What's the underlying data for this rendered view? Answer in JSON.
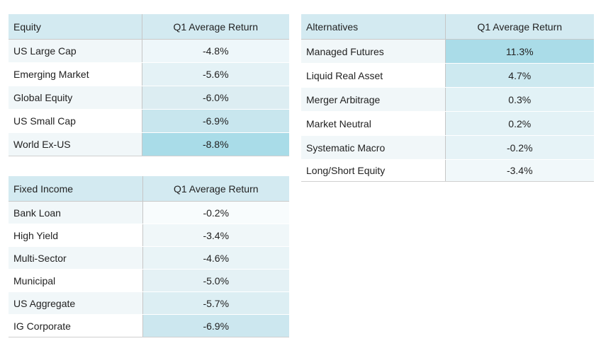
{
  "equity": {
    "header": {
      "name": "Equity",
      "value": "Q1 Average Return"
    },
    "rows": [
      {
        "name": "US Large Cap",
        "value": "-4.8%",
        "color": "#eef7fa"
      },
      {
        "name": "Emerging Market",
        "value": "-5.6%",
        "color": "#e4f2f6"
      },
      {
        "name": "Global Equity",
        "value": "-6.0%",
        "color": "#dcedf2"
      },
      {
        "name": "US Small Cap",
        "value": "-6.9%",
        "color": "#c8e6ee"
      },
      {
        "name": "World Ex-US",
        "value": "-8.8%",
        "color": "#a9dce8"
      }
    ]
  },
  "fixed_income": {
    "header": {
      "name": "Fixed Income",
      "value": "Q1 Average Return"
    },
    "rows": [
      {
        "name": "Bank Loan",
        "value": "-0.2%",
        "color": "#f8fcfd"
      },
      {
        "name": "High Yield",
        "value": "-3.4%",
        "color": "#f0f7f9"
      },
      {
        "name": "Multi-Sector",
        "value": "-4.6%",
        "color": "#e9f4f7"
      },
      {
        "name": "Municipal",
        "value": "-5.0%",
        "color": "#e4f1f5"
      },
      {
        "name": "US Aggregate",
        "value": "-5.7%",
        "color": "#dceef3"
      },
      {
        "name": "IG Corporate",
        "value": "-6.9%",
        "color": "#cce7ef"
      }
    ]
  },
  "alternatives": {
    "header": {
      "name": "Alternatives",
      "value": "Q1 Average Return"
    },
    "rows": [
      {
        "name": "Managed Futures",
        "value": "11.3%",
        "color": "#aadce8"
      },
      {
        "name": "Liquid Real Asset",
        "value": "4.7%",
        "color": "#cde9f0"
      },
      {
        "name": "Merger Arbitrage",
        "value": "0.3%",
        "color": "#e2f2f6"
      },
      {
        "name": "Market Neutral",
        "value": "0.2%",
        "color": "#e3f2f6"
      },
      {
        "name": "Systematic Macro",
        "value": "-0.2%",
        "color": "#e6f3f7"
      },
      {
        "name": "Long/Short Equity",
        "value": "-3.4%",
        "color": "#f1f8fa"
      }
    ]
  }
}
